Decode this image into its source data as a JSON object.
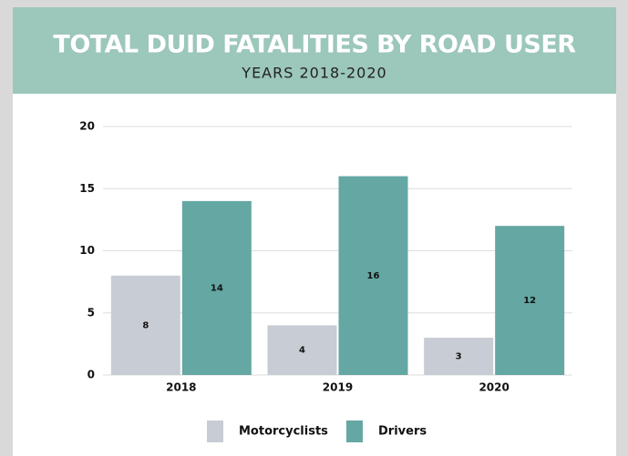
{
  "chart_data": {
    "type": "bar",
    "title": "TOTAL DUID FATALITIES BY ROAD USER",
    "subtitle": "YEARS 2018-2020",
    "categories": [
      "2018",
      "2019",
      "2020"
    ],
    "series": [
      {
        "name": "Motorcyclists",
        "color": "#c8ccd4",
        "values": [
          8,
          4,
          3
        ]
      },
      {
        "name": "Drivers",
        "color": "#64a7a3",
        "values": [
          14,
          16,
          12
        ]
      }
    ],
    "ylim": [
      0,
      20
    ],
    "yticks": [
      0,
      5,
      10,
      15,
      20
    ],
    "grid": true
  }
}
